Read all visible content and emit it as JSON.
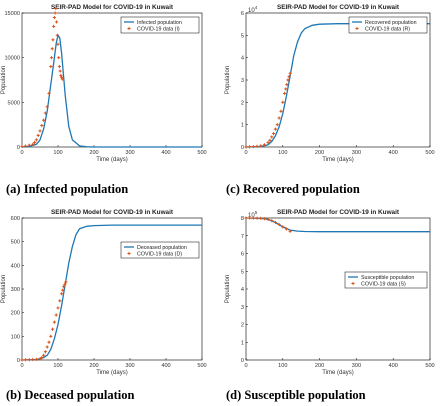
{
  "figure_captions": [
    "(a) Infected population",
    "(c) Recovered population",
    "(b) Deceased population",
    "(d) Susceptible population"
  ],
  "colors": {
    "model_line": "#1f77b4",
    "data_marker": "#d95319",
    "axes": "#000000"
  },
  "chart_data": [
    {
      "type": "line",
      "panel": "a",
      "title": "SEIR-PAD Model for COVID-19 in Kuwait",
      "xlabel": "Time (days)",
      "ylabel": "Population",
      "xlim": [
        0,
        500
      ],
      "ylim": [
        0,
        15000
      ],
      "x_ticks": [
        "0",
        "100",
        "200",
        "300",
        "400",
        "500"
      ],
      "y_ticks": [
        "0",
        "5000",
        "10000",
        "15000"
      ],
      "y_exponent": "",
      "legend_position": "top-right",
      "grid": false,
      "series": [
        {
          "name": "Infected population",
          "kind": "line",
          "x": [
            0,
            20,
            40,
            50,
            60,
            70,
            80,
            90,
            95,
            100,
            105,
            110,
            120,
            130,
            140,
            160,
            180,
            200,
            250,
            300,
            400,
            500
          ],
          "y": [
            0,
            60,
            300,
            800,
            2000,
            4000,
            7000,
            10000,
            11600,
            12500,
            12200,
            10500,
            5800,
            2300,
            800,
            120,
            20,
            5,
            0,
            0,
            0,
            0
          ]
        },
        {
          "name": "COVID-19 data (I)",
          "kind": "scatter",
          "x": [
            0,
            10,
            20,
            30,
            35,
            40,
            45,
            50,
            55,
            60,
            65,
            70,
            75,
            80,
            82,
            84,
            86,
            88,
            90,
            92,
            94,
            96,
            98,
            100,
            102,
            104,
            106,
            108,
            110,
            112
          ],
          "y": [
            50,
            100,
            200,
            300,
            500,
            800,
            1300,
            1800,
            2400,
            3000,
            3800,
            4500,
            6000,
            9000,
            10000,
            11000,
            12000,
            13500,
            14500,
            15000,
            15500,
            14000,
            12500,
            11500,
            10000,
            9000,
            8500,
            8000,
            7800,
            7600
          ]
        }
      ]
    },
    {
      "type": "line",
      "panel": "c",
      "title": "SEIR-PAD Model for COVID-19 in Kuwait",
      "xlabel": "Time (days)",
      "ylabel": "Population",
      "xlim": [
        0,
        500
      ],
      "ylim": [
        0,
        6
      ],
      "x_ticks": [
        "0",
        "100",
        "200",
        "300",
        "400",
        "500"
      ],
      "y_ticks": [
        "0",
        "1",
        "2",
        "3",
        "4",
        "5",
        "6"
      ],
      "y_exponent": "10",
      "y_exponent_power": "4",
      "legend_position": "top-right",
      "grid": false,
      "series": [
        {
          "name": "Recovered population",
          "kind": "line",
          "x": [
            0,
            40,
            60,
            70,
            80,
            90,
            100,
            110,
            120,
            130,
            140,
            150,
            160,
            180,
            200,
            250,
            300,
            400,
            500
          ],
          "y": [
            0,
            0.02,
            0.1,
            0.25,
            0.5,
            0.9,
            1.5,
            2.3,
            3.2,
            4.1,
            4.7,
            5.1,
            5.3,
            5.45,
            5.5,
            5.52,
            5.52,
            5.52,
            5.52
          ]
        },
        {
          "name": "COVID-19 data (R)",
          "kind": "scatter",
          "x": [
            0,
            10,
            20,
            30,
            40,
            50,
            60,
            65,
            70,
            75,
            80,
            85,
            90,
            95,
            100,
            105,
            108,
            111,
            114,
            117,
            120
          ],
          "y": [
            0,
            0.01,
            0.02,
            0.03,
            0.05,
            0.1,
            0.2,
            0.3,
            0.45,
            0.6,
            0.8,
            1.0,
            1.3,
            1.6,
            2.0,
            2.4,
            2.6,
            2.8,
            3.0,
            3.15,
            3.3
          ]
        }
      ]
    },
    {
      "type": "line",
      "panel": "b",
      "title": "SEIR-PAD Model for COVID-19 in Kuwait",
      "xlabel": "Time (days)",
      "ylabel": "Population",
      "xlim": [
        0,
        500
      ],
      "ylim": [
        0,
        600
      ],
      "x_ticks": [
        "0",
        "100",
        "200",
        "300",
        "400",
        "500"
      ],
      "y_ticks": [
        "0",
        "100",
        "200",
        "300",
        "400",
        "500",
        "600"
      ],
      "y_exponent": "",
      "legend_position": "top-right",
      "grid": false,
      "series": [
        {
          "name": "Deceased population",
          "kind": "line",
          "x": [
            0,
            40,
            60,
            70,
            80,
            90,
            100,
            110,
            120,
            130,
            140,
            150,
            160,
            180,
            200,
            250,
            300,
            400,
            500
          ],
          "y": [
            0,
            2,
            10,
            20,
            45,
            90,
            150,
            230,
            320,
            410,
            480,
            530,
            555,
            565,
            568,
            570,
            570,
            570,
            570
          ]
        },
        {
          "name": "COVID-19 data (D)",
          "kind": "scatter",
          "x": [
            0,
            10,
            20,
            30,
            40,
            50,
            55,
            60,
            65,
            70,
            75,
            80,
            85,
            90,
            95,
            100,
            105,
            110,
            113,
            116,
            119,
            122
          ],
          "y": [
            0,
            1,
            1,
            2,
            3,
            5,
            10,
            20,
            35,
            55,
            75,
            100,
            130,
            160,
            190,
            220,
            250,
            280,
            295,
            310,
            320,
            330
          ]
        }
      ]
    },
    {
      "type": "line",
      "panel": "d",
      "title": "SEIR-PAD Model for COVID-19 in Kuwait",
      "xlabel": "Time (days)",
      "ylabel": "Population",
      "xlim": [
        0,
        500
      ],
      "ylim": [
        0,
        8
      ],
      "x_ticks": [
        "0",
        "100",
        "200",
        "300",
        "400",
        "500"
      ],
      "y_ticks": [
        "0",
        "1",
        "2",
        "3",
        "4",
        "5",
        "6",
        "7",
        "8"
      ],
      "y_exponent": "10",
      "y_exponent_power": "5",
      "legend_position": "right",
      "grid": false,
      "series": [
        {
          "name": "Susceptible population",
          "kind": "line",
          "x": [
            0,
            40,
            60,
            80,
            100,
            120,
            140,
            160,
            200,
            300,
            400,
            500
          ],
          "y": [
            8.0,
            7.98,
            7.92,
            7.75,
            7.5,
            7.32,
            7.26,
            7.24,
            7.23,
            7.23,
            7.23,
            7.23
          ]
        },
        {
          "name": "COVID-19 data (S)",
          "kind": "scatter",
          "x": [
            0,
            10,
            20,
            30,
            40,
            50,
            60,
            70,
            80,
            90,
            100,
            110,
            120
          ],
          "y": [
            8.0,
            8.0,
            8.0,
            7.99,
            7.98,
            7.96,
            7.92,
            7.85,
            7.75,
            7.63,
            7.5,
            7.38,
            7.25
          ]
        }
      ]
    }
  ]
}
